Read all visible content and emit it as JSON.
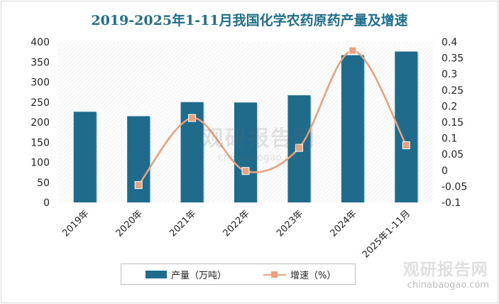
{
  "chart_data": {
    "type": "bar",
    "title": "2019-2025年1-11月我国化学农药原药产量及增速",
    "categories": [
      "2019年",
      "2020年",
      "2021年",
      "2022年",
      "2023年",
      "2024年",
      "2025年1-11月"
    ],
    "series": [
      {
        "name": "产量（万吨）",
        "type": "bar",
        "axis": "left",
        "color": "#1e6b8c",
        "values": [
          226,
          215,
          250,
          249,
          267,
          367,
          376
        ]
      },
      {
        "name": "增速（%）",
        "type": "line",
        "axis": "right",
        "color": "#e8a27e",
        "values": [
          null,
          -0.046,
          0.163,
          -0.002,
          0.07,
          0.373,
          0.078
        ]
      }
    ],
    "left_axis": {
      "min": 0,
      "max": 400,
      "step": 50,
      "ticks": [
        "0",
        "50",
        "100",
        "150",
        "200",
        "250",
        "300",
        "350",
        "400"
      ]
    },
    "right_axis": {
      "min": -0.1,
      "max": 0.4,
      "step": 0.05,
      "ticks": [
        "-0.1",
        "-0.05",
        "0",
        "0.05",
        "0.1",
        "0.15",
        "0.2",
        "0.25",
        "0.3",
        "0.35",
        "0.4"
      ]
    },
    "legend_position": "bottom"
  },
  "legend": {
    "bar_label": "产量（万吨）",
    "line_label": "增速（%）"
  },
  "watermark": {
    "cn": "观研报告网",
    "en": "chinabaogao.com"
  },
  "brand": {
    "cn": "观研报告网",
    "en": "chinabaogao.com"
  }
}
